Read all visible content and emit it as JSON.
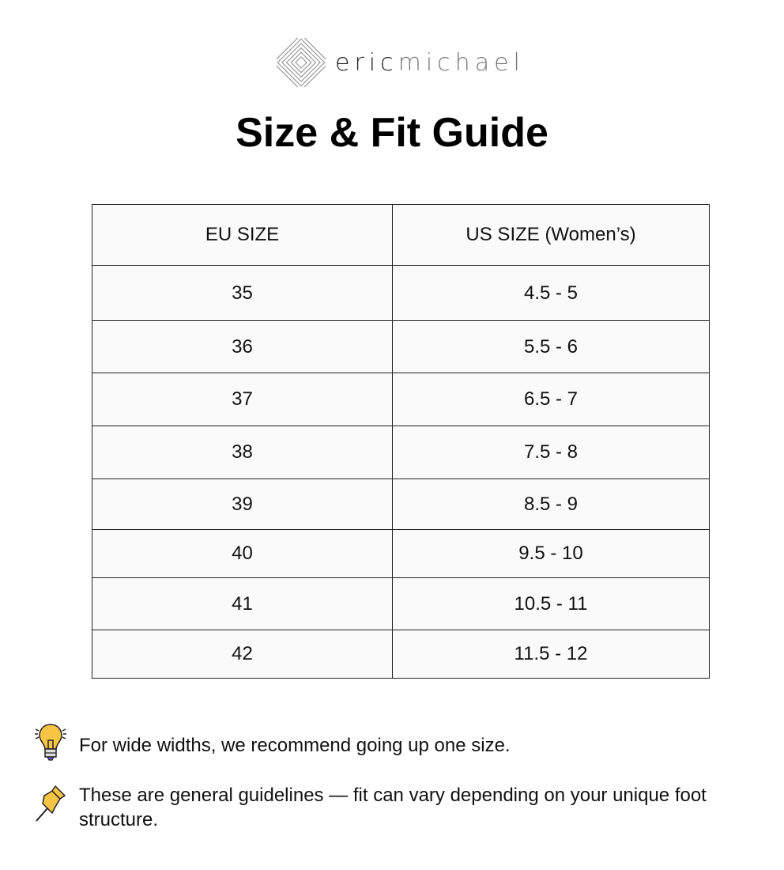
{
  "logo": {
    "part1": "eric",
    "part2": "michael"
  },
  "title": "Size & Fit Guide",
  "table": {
    "headers": [
      "EU SIZE",
      "US SIZE (Women’s)"
    ],
    "rows": [
      [
        "35",
        "4.5 - 5"
      ],
      [
        "36",
        "5.5 - 6"
      ],
      [
        "37",
        "6.5 - 7"
      ],
      [
        "38",
        "7.5 - 8"
      ],
      [
        "39",
        "8.5 - 9"
      ],
      [
        "40",
        "9.5 - 10"
      ],
      [
        "41",
        "10.5 - 11"
      ],
      [
        "42",
        "11.5 - 12"
      ]
    ]
  },
  "tips": [
    {
      "icon": "lightbulb-icon",
      "text": "For wide widths, we recommend going up one size."
    },
    {
      "icon": "pushpin-icon",
      "text": "These are general guidelines — fit can vary depending on your unique foot structure."
    }
  ]
}
